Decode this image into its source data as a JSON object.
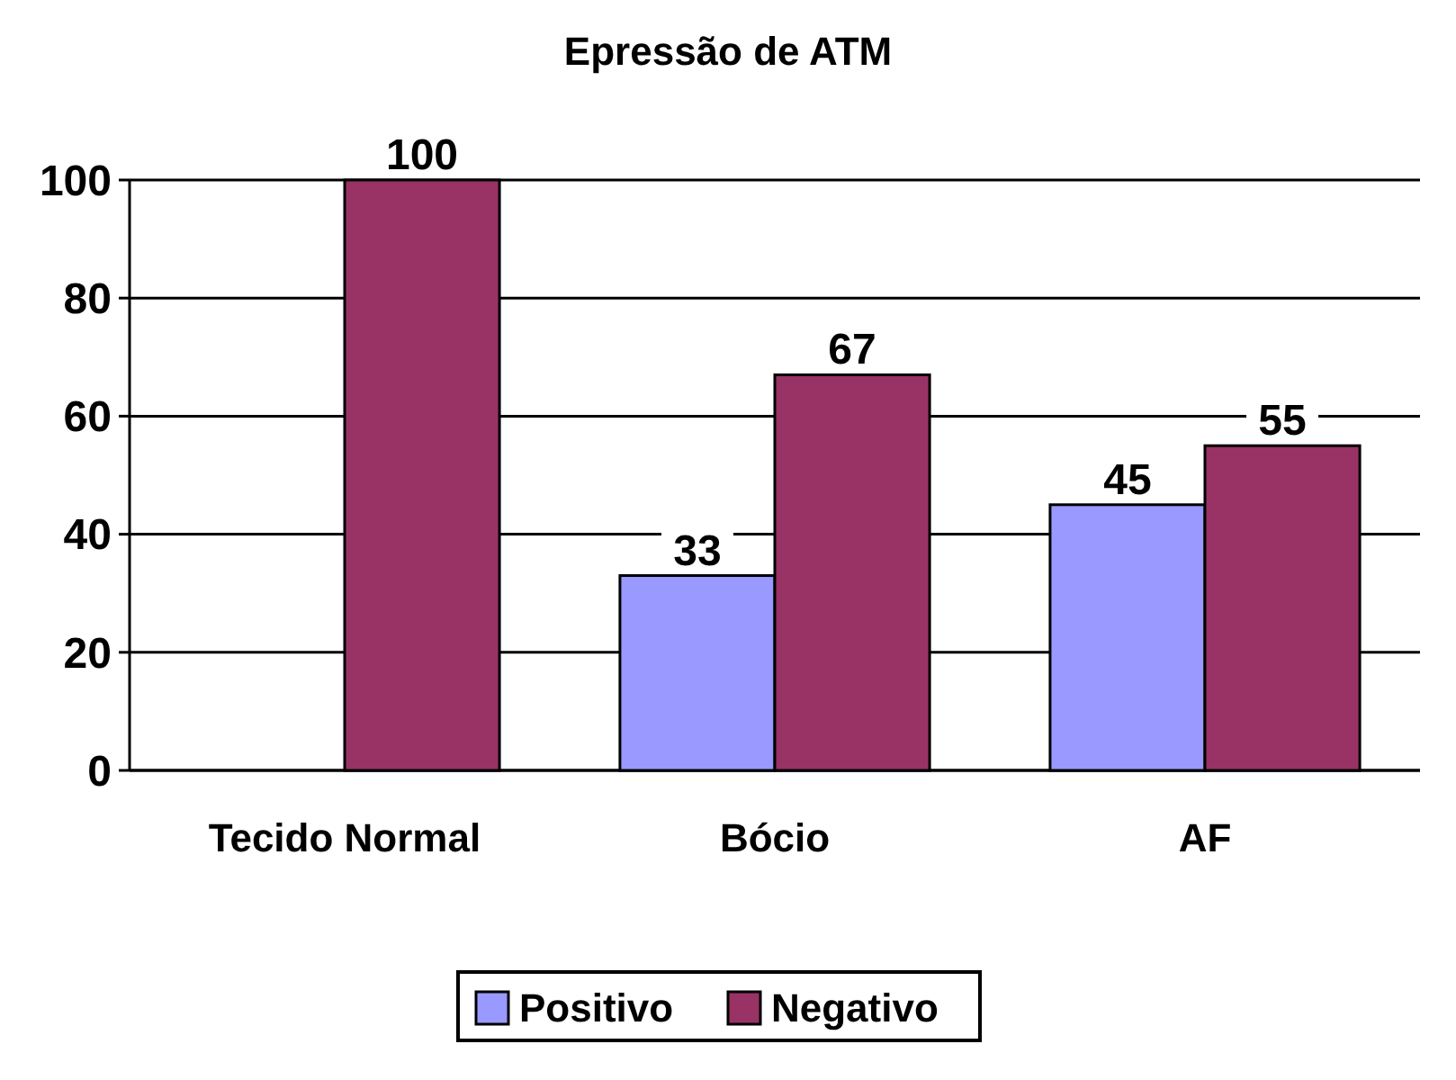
{
  "chart_data": {
    "type": "bar",
    "title": "Epressão de ATM",
    "categories": [
      "Tecido Normal",
      "Bócio",
      "AF"
    ],
    "series": [
      {
        "name": "Positivo",
        "color": "#9999ff",
        "values": [
          null,
          33,
          45
        ]
      },
      {
        "name": "Negativo",
        "color": "#993366",
        "values": [
          100,
          67,
          55
        ]
      }
    ],
    "ylim": [
      0,
      100
    ],
    "yticks": [
      0,
      20,
      40,
      60,
      80,
      100
    ],
    "grid": "y",
    "legend": "bottom",
    "data_labels": true
  }
}
